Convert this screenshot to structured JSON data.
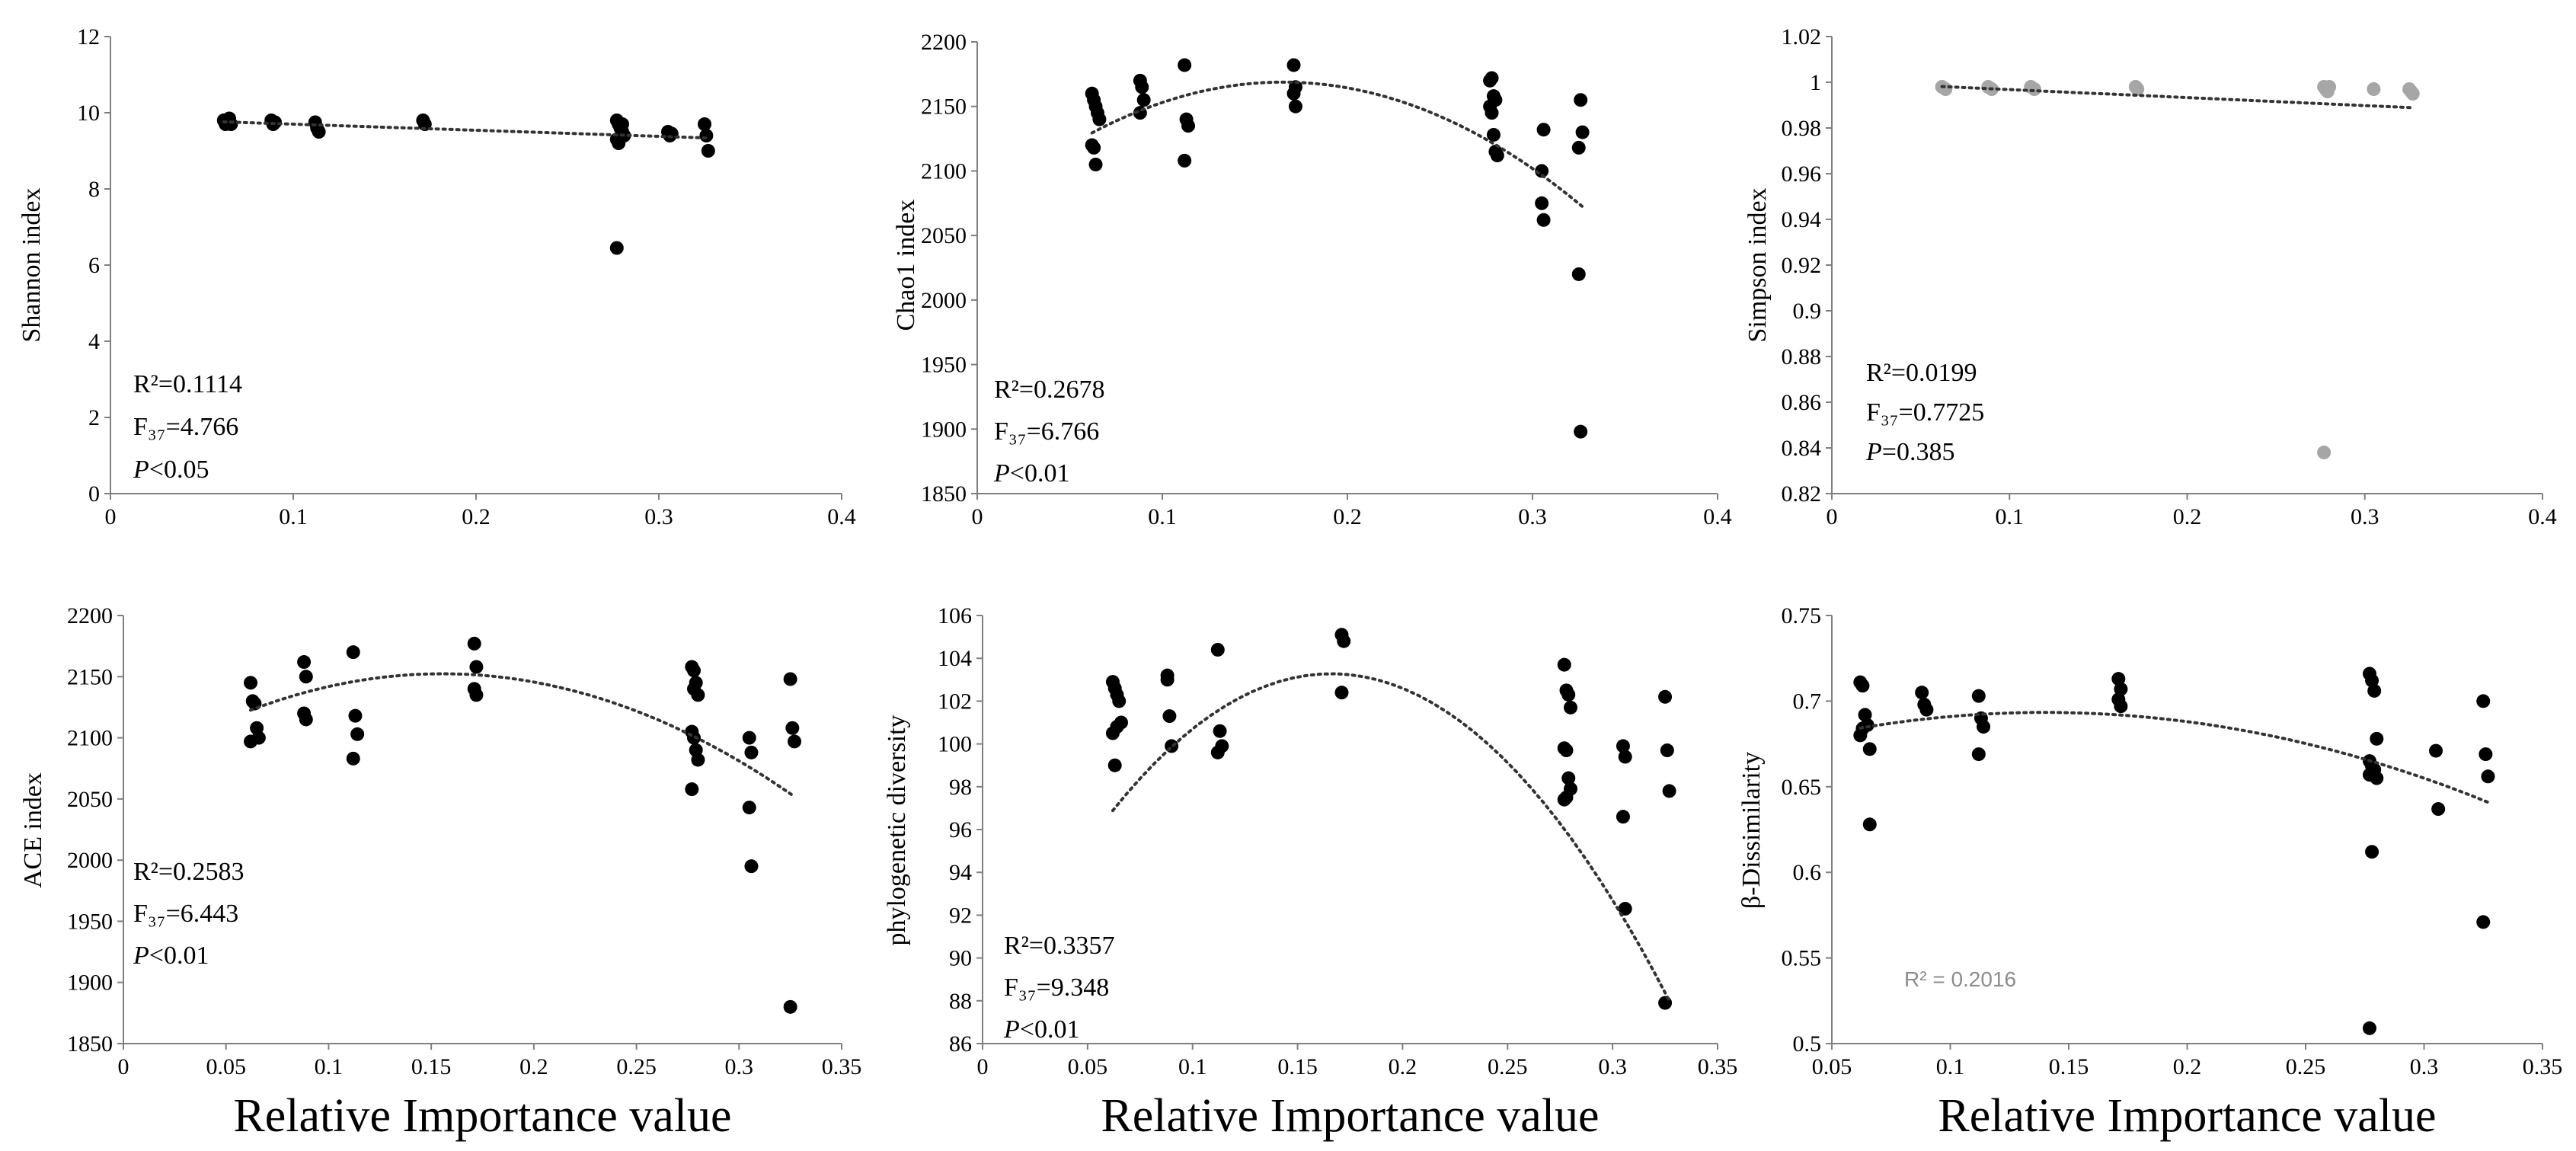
{
  "chart_data": [
    {
      "type": "scatter",
      "ylabel": "Shannon index",
      "xlabel": "",
      "xlim": [
        0,
        0.4
      ],
      "xticks": [
        "0",
        "0.1",
        "0.2",
        "0.3",
        "0.4"
      ],
      "ylim": [
        0,
        12
      ],
      "yticks": [
        "0",
        "2",
        "4",
        "6",
        "8",
        "10",
        "12"
      ],
      "point_color": "#000000",
      "x": [
        0.062,
        0.063,
        0.064,
        0.065,
        0.066,
        0.088,
        0.089,
        0.09,
        0.112,
        0.113,
        0.114,
        0.171,
        0.172,
        0.277,
        0.278,
        0.279,
        0.28,
        0.281,
        0.277,
        0.278,
        0.279,
        0.28,
        0.277,
        0.305,
        0.306,
        0.307,
        0.325,
        0.326,
        0.327
      ],
      "y": [
        9.8,
        9.7,
        9.75,
        9.85,
        9.7,
        9.8,
        9.7,
        9.75,
        9.75,
        9.6,
        9.5,
        9.8,
        9.7,
        9.8,
        9.7,
        9.6,
        9.5,
        9.4,
        9.3,
        9.2,
        9.6,
        9.7,
        6.45,
        9.5,
        9.4,
        9.45,
        9.7,
        9.4,
        9.0
      ],
      "trend": {
        "type": "linear",
        "a": -1.6,
        "b": 9.86,
        "x0": 0.062,
        "x1": 0.327
      },
      "annotation": {
        "r2": "R²=0.1114",
        "f": "F₃₇=4.766",
        "p_label": "P",
        "p_value": "<0.05"
      }
    },
    {
      "type": "scatter",
      "ylabel": "Chao1 index",
      "xlabel": "",
      "xlim": [
        0,
        0.4
      ],
      "xticks": [
        "0",
        "0.1",
        "0.2",
        "0.3",
        "0.4"
      ],
      "ylim": [
        1850,
        2200
      ],
      "yticks": [
        "1850",
        "1900",
        "1950",
        "2000",
        "2050",
        "2100",
        "2150",
        "2200"
      ],
      "point_color": "#000000",
      "x": [
        0.062,
        0.063,
        0.064,
        0.065,
        0.066,
        0.062,
        0.063,
        0.064,
        0.088,
        0.089,
        0.09,
        0.088,
        0.112,
        0.113,
        0.114,
        0.112,
        0.171,
        0.172,
        0.171,
        0.172,
        0.277,
        0.278,
        0.279,
        0.28,
        0.277,
        0.278,
        0.279,
        0.28,
        0.281,
        0.305,
        0.306,
        0.305,
        0.306,
        0.325,
        0.326,
        0.327,
        0.325
      ],
      "y": [
        2160,
        2155,
        2150,
        2145,
        2140,
        2120,
        2118,
        2105,
        2170,
        2165,
        2155,
        2145,
        2182,
        2140,
        2135,
        2108,
        2182,
        2165,
        2160,
        2150,
        2170,
        2172,
        2158,
        2155,
        2150,
        2145,
        2128,
        2115,
        2112,
        2075,
        2132,
        2100,
        2062,
        2020,
        2155,
        2130,
        2118
      ],
      "extra_points": [
        [
          0.326,
          1898
        ]
      ],
      "trend": {
        "type": "quadratic",
        "a": -3690,
        "b": 1220,
        "c": 2068,
        "x0": 0.062,
        "x1": 0.327
      },
      "annotation": {
        "r2": "R²=0.2678",
        "f": "F₃₇=6.766",
        "p_label": "P",
        "p_value": "<0.01"
      }
    },
    {
      "type": "scatter",
      "ylabel": "Simpson index",
      "xlabel": "",
      "xlim": [
        0,
        0.4
      ],
      "xticks": [
        "0",
        "0.1",
        "0.2",
        "0.3",
        "0.4"
      ],
      "ylim": [
        0.82,
        1.02
      ],
      "yticks": [
        "0.82",
        "0.84",
        "0.86",
        "0.88",
        "0.9",
        "0.92",
        "0.94",
        "0.96",
        "0.98",
        "1",
        "1.02"
      ],
      "point_color": "#a6a6a6",
      "x": [
        0.062,
        0.064,
        0.088,
        0.09,
        0.112,
        0.114,
        0.171,
        0.172,
        0.277,
        0.278,
        0.279,
        0.28,
        0.305,
        0.325,
        0.326,
        0.327,
        0.277
      ],
      "y": [
        0.998,
        0.997,
        0.998,
        0.997,
        0.998,
        0.997,
        0.998,
        0.997,
        0.998,
        0.997,
        0.996,
        0.998,
        0.997,
        0.997,
        0.996,
        0.995,
        0.838
      ],
      "trend": {
        "type": "linear",
        "a": -0.035,
        "b": 1.0003,
        "x0": 0.062,
        "x1": 0.327
      },
      "annotation": {
        "r2": "R²=0.0199",
        "f": "F₃₇=0.7725",
        "p_label": "P",
        "p_value": "=0.385"
      }
    },
    {
      "type": "scatter",
      "ylabel": "ACE index",
      "xlabel": "Relative Importance value",
      "xlim": [
        0,
        0.35
      ],
      "xticks": [
        "0",
        "0.05",
        "0.1",
        "0.15",
        "0.2",
        "0.25",
        "0.3",
        "0.35"
      ],
      "ylim": [
        1850,
        2200
      ],
      "yticks": [
        "1850",
        "1900",
        "1950",
        "2000",
        "2050",
        "2100",
        "2150",
        "2200"
      ],
      "point_color": "#000000",
      "x": [
        0.062,
        0.063,
        0.064,
        0.065,
        0.066,
        0.062,
        0.088,
        0.089,
        0.088,
        0.089,
        0.112,
        0.113,
        0.114,
        0.112,
        0.171,
        0.172,
        0.171,
        0.172,
        0.277,
        0.278,
        0.279,
        0.28,
        0.277,
        0.278,
        0.279,
        0.28,
        0.277,
        0.278,
        0.305,
        0.306,
        0.305,
        0.306,
        0.325,
        0.326,
        0.327,
        0.325
      ],
      "y": [
        2145,
        2130,
        2128,
        2108,
        2100,
        2097,
        2162,
        2150,
        2120,
        2115,
        2170,
        2118,
        2103,
        2083,
        2177,
        2158,
        2140,
        2135,
        2158,
        2155,
        2145,
        2135,
        2105,
        2100,
        2090,
        2082,
        2058,
        2140,
        2100,
        2088,
        2043,
        1995,
        2148,
        2108,
        2097,
        1880
      ],
      "trend": {
        "type": "quadratic",
        "a": -3410,
        "b": 1060,
        "c": 2070,
        "x0": 0.062,
        "x1": 0.327
      },
      "annotation": {
        "r2": "R²=0.2583",
        "f": "F₃₇=6.443",
        "p_label": "P",
        "p_value": "<0.01"
      }
    },
    {
      "type": "scatter",
      "ylabel": "phylogenetic diversity",
      "xlabel": "Relative Importance value",
      "xlim": [
        0,
        0.35
      ],
      "xticks": [
        "0",
        "0.05",
        "0.1",
        "0.15",
        "0.2",
        "0.25",
        "0.3",
        "0.35"
      ],
      "ylim": [
        86,
        106
      ],
      "yticks": [
        "86",
        "88",
        "90",
        "92",
        "94",
        "96",
        "98",
        "100",
        "102",
        "104",
        "106"
      ],
      "point_color": "#000000",
      "x": [
        0.062,
        0.063,
        0.064,
        0.065,
        0.066,
        0.062,
        0.063,
        0.064,
        0.088,
        0.089,
        0.09,
        0.088,
        0.112,
        0.113,
        0.114,
        0.112,
        0.171,
        0.172,
        0.171,
        0.277,
        0.278,
        0.279,
        0.28,
        0.277,
        0.278,
        0.279,
        0.28,
        0.277,
        0.278,
        0.305,
        0.306,
        0.305,
        0.306,
        0.325,
        0.326,
        0.327,
        0.325
      ],
      "y": [
        102.9,
        102.6,
        102.3,
        102.0,
        101.0,
        100.5,
        99.0,
        100.8,
        103.2,
        101.3,
        99.9,
        103.0,
        104.4,
        100.6,
        99.9,
        99.6,
        105.1,
        104.8,
        102.4,
        103.7,
        102.5,
        102.3,
        101.7,
        99.8,
        99.7,
        98.4,
        97.9,
        97.4,
        97.5,
        99.9,
        99.4,
        96.6,
        92.3,
        102.2,
        99.7,
        97.8,
        87.9
      ],
      "trend": {
        "type": "quadratic",
        "a": -590,
        "b": 196,
        "c": 87.0,
        "x0": 0.062,
        "x1": 0.327
      },
      "annotation": {
        "r2": "R²=0.3357",
        "f": "F₃₇=9.348",
        "p_label": "P",
        "p_value": "<0.01"
      }
    },
    {
      "type": "scatter",
      "ylabel": "β-Dissimilarity",
      "xlabel": "Relative Importance value",
      "xlim": [
        0.05,
        0.35
      ],
      "xticks": [
        "0.05",
        "0.1",
        "0.15",
        "0.2",
        "0.25",
        "0.3",
        "0.35"
      ],
      "ylim": [
        0.5,
        0.75
      ],
      "yticks": [
        "0.5",
        "0.55",
        "0.6",
        "0.65",
        "0.7",
        "0.75"
      ],
      "point_color": "#000000",
      "x": [
        0.062,
        0.063,
        0.064,
        0.065,
        0.066,
        0.062,
        0.063,
        0.088,
        0.089,
        0.09,
        0.112,
        0.113,
        0.114,
        0.112,
        0.171,
        0.172,
        0.171,
        0.172,
        0.277,
        0.278,
        0.279,
        0.28,
        0.277,
        0.278,
        0.279,
        0.28,
        0.277,
        0.278,
        0.305,
        0.306,
        0.325,
        0.326,
        0.327,
        0.325,
        0.066,
        0.277
      ],
      "y": [
        0.711,
        0.709,
        0.692,
        0.686,
        0.672,
        0.68,
        0.684,
        0.705,
        0.698,
        0.695,
        0.703,
        0.69,
        0.685,
        0.669,
        0.713,
        0.707,
        0.701,
        0.697,
        0.716,
        0.712,
        0.706,
        0.678,
        0.665,
        0.662,
        0.66,
        0.655,
        0.657,
        0.612,
        0.671,
        0.637,
        0.7,
        0.669,
        0.656,
        0.571,
        0.628,
        0.509
      ],
      "trend": {
        "type": "quadratic",
        "a": -1.5,
        "b": 0.42,
        "c": 0.664,
        "x0": 0.062,
        "x1": 0.327
      },
      "annotation": {
        "r2_gray": "R² = 0.2016"
      }
    }
  ]
}
